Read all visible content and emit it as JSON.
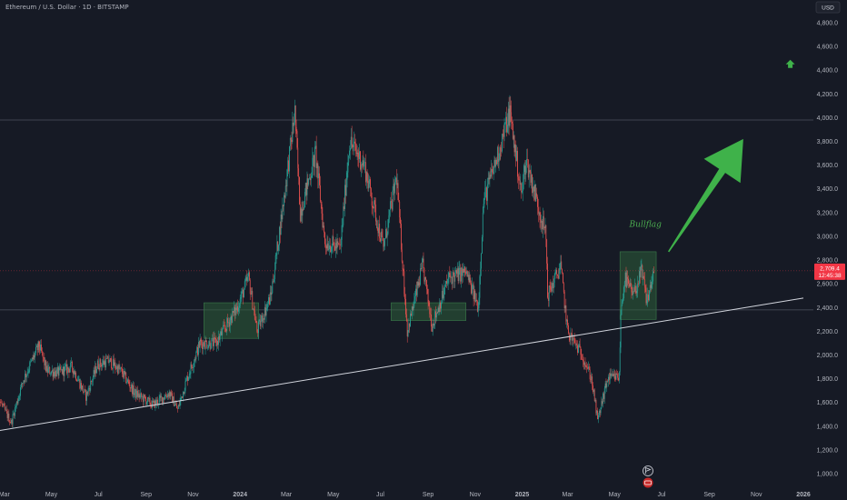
{
  "header": {
    "symbol_title": "Ethereum / U.S. Dollar · 1D · BITSTAMP",
    "currency_button": "USD"
  },
  "price_label": {
    "price": "2,709.4",
    "countdown": "12:45:38"
  },
  "colors": {
    "background": "#161a25",
    "up": "#26a69a",
    "down": "#ef5350",
    "axis_text": "#b2b5be",
    "trendline": "#d1d4dc",
    "zone_fill": "#2e5e3a",
    "arrow": "#3fb24a",
    "price_tag": "#f23645"
  },
  "icons": [
    "up-arrow-icon",
    "flag-icon",
    "earnings-badge-icon"
  ],
  "chart_data": {
    "type": "candlestick",
    "title": "Ethereum / U.S. Dollar · 1D · BITSTAMP",
    "ylim": [
      900,
      5000
    ],
    "grid": false,
    "x_ticks": [
      "Mar",
      "May",
      "Jul",
      "Sep",
      "Nov",
      "2024",
      "Mar",
      "May",
      "Jul",
      "Sep",
      "Nov",
      "2025",
      "Mar",
      "May",
      "Jul",
      "Sep",
      "Nov",
      "2026"
    ],
    "x_tick_dates": [
      "2023-03-01",
      "2023-05-01",
      "2023-07-01",
      "2023-09-01",
      "2023-11-01",
      "2024-01-01",
      "2024-03-01",
      "2024-05-01",
      "2024-07-01",
      "2024-09-01",
      "2024-11-01",
      "2025-01-01",
      "2025-03-01",
      "2025-05-01",
      "2025-07-01",
      "2025-09-01",
      "2025-11-01",
      "2026-01-01"
    ],
    "y_ticks": [
      "1,000.0",
      "1,200.0",
      "1,400.0",
      "1,600.0",
      "1,800.0",
      "2,000.0",
      "2,200.0",
      "2,400.0",
      "2,600.0",
      "2,800.0",
      "3,000.0",
      "3,200.0",
      "3,400.0",
      "3,600.0",
      "3,800.0",
      "4,000.0",
      "4,200.0",
      "4,400.0",
      "4,600.0",
      "4,800.0"
    ],
    "y_tick_values": [
      1000,
      1200,
      1400,
      1600,
      1800,
      2000,
      2200,
      2400,
      2600,
      2800,
      3000,
      3200,
      3400,
      3600,
      3800,
      4000,
      4200,
      4400,
      4600,
      4800
    ],
    "price_path": [
      [
        "2023-02-01",
        1580
      ],
      [
        "2023-02-20",
        1650
      ],
      [
        "2023-03-10",
        1430
      ],
      [
        "2023-03-25",
        1780
      ],
      [
        "2023-04-15",
        2080
      ],
      [
        "2023-04-25",
        1870
      ],
      [
        "2023-05-10",
        1850
      ],
      [
        "2023-05-28",
        1900
      ],
      [
        "2023-06-15",
        1650
      ],
      [
        "2023-06-30",
        1920
      ],
      [
        "2023-07-15",
        1950
      ],
      [
        "2023-07-31",
        1860
      ],
      [
        "2023-08-17",
        1680
      ],
      [
        "2023-09-10",
        1580
      ],
      [
        "2023-10-01",
        1680
      ],
      [
        "2023-10-12",
        1540
      ],
      [
        "2023-10-24",
        1800
      ],
      [
        "2023-11-10",
        2100
      ],
      [
        "2023-12-01",
        2100
      ],
      [
        "2023-12-28",
        2400
      ],
      [
        "2024-01-12",
        2650
      ],
      [
        "2024-01-23",
        2200
      ],
      [
        "2024-02-10",
        2500
      ],
      [
        "2024-02-28",
        3380
      ],
      [
        "2024-03-12",
        4050
      ],
      [
        "2024-03-19",
        3200
      ],
      [
        "2024-04-08",
        3700
      ],
      [
        "2024-04-20",
        2950
      ],
      [
        "2024-05-10",
        2900
      ],
      [
        "2024-05-22",
        3800
      ],
      [
        "2024-06-10",
        3600
      ],
      [
        "2024-07-05",
        2900
      ],
      [
        "2024-07-22",
        3500
      ],
      [
        "2024-08-05",
        2200
      ],
      [
        "2024-08-25",
        2750
      ],
      [
        "2024-09-06",
        2250
      ],
      [
        "2024-09-28",
        2650
      ],
      [
        "2024-10-20",
        2700
      ],
      [
        "2024-11-05",
        2400
      ],
      [
        "2024-11-12",
        3300
      ],
      [
        "2024-12-01",
        3700
      ],
      [
        "2024-12-16",
        4050
      ],
      [
        "2024-12-31",
        3350
      ],
      [
        "2025-01-06",
        3650
      ],
      [
        "2025-01-20",
        3300
      ],
      [
        "2025-02-01",
        3000
      ],
      [
        "2025-02-03",
        2500
      ],
      [
        "2025-02-20",
        2750
      ],
      [
        "2025-03-01",
        2200
      ],
      [
        "2025-03-20",
        2000
      ],
      [
        "2025-04-01",
        1800
      ],
      [
        "2025-04-09",
        1450
      ],
      [
        "2025-04-22",
        1800
      ],
      [
        "2025-05-07",
        1820
      ],
      [
        "2025-05-09",
        2350
      ],
      [
        "2025-05-14",
        2650
      ],
      [
        "2025-05-25",
        2500
      ],
      [
        "2025-06-05",
        2700
      ],
      [
        "2025-06-12",
        2450
      ],
      [
        "2025-06-21",
        2709.4
      ]
    ],
    "series": [
      {
        "name": "Last price",
        "type": "horizontal_level",
        "value": 2709.4
      }
    ],
    "annotations": {
      "trendline": {
        "from": [
          "2023-02-01",
          1340
        ],
        "to": [
          "2026-01-01",
          2480
        ]
      },
      "horizontal_lines": [
        3980,
        2380
      ],
      "zones": [
        {
          "x": [
            "2023-11-15",
            "2024-01-25"
          ],
          "y": [
            2140,
            2440
          ]
        },
        {
          "x": [
            "2024-07-15",
            "2024-10-20"
          ],
          "y": [
            2290,
            2440
          ]
        },
        {
          "x": [
            "2025-05-08",
            "2025-06-24"
          ],
          "y": [
            2300,
            2870
          ]
        }
      ],
      "text": {
        "label": "Bullflag",
        "at": [
          "2025-06-10",
          3080
        ]
      },
      "big_arrow": {
        "from": [
          "2025-07-10",
          2870
        ],
        "to": [
          "2025-10-15",
          3820
        ]
      },
      "small_arrow": {
        "at": [
          "2025-12-15",
          4450
        ]
      }
    }
  }
}
